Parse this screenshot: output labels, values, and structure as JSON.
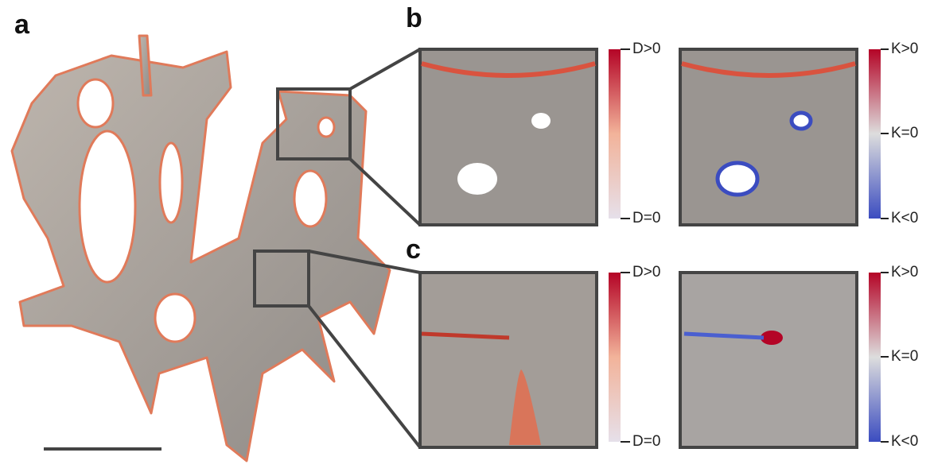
{
  "panels": [
    {
      "label": "a"
    },
    {
      "label": "b",
      "colorbars": [
        {
          "top": "D>0",
          "bottom": "D=0"
        },
        {
          "top": "K>0",
          "middle": "K=0",
          "bottom": "K<0"
        }
      ]
    },
    {
      "label": "c",
      "colorbars": [
        {
          "top": "D>0",
          "bottom": "D=0"
        },
        {
          "top": "K>0",
          "middle": "K=0",
          "bottom": "K<0"
        }
      ]
    }
  ]
}
